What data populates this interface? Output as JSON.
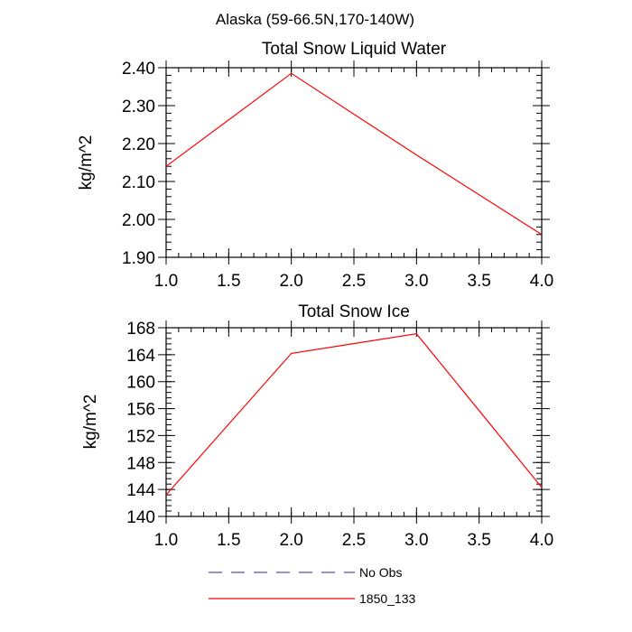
{
  "figure": {
    "suptitle": "Alaska (59-66.5N,170-140W)"
  },
  "chart_data": [
    {
      "type": "line",
      "title": "Total Snow Liquid Water",
      "xlabel": "",
      "ylabel": "kg/m^2",
      "xlim": [
        1.0,
        4.0
      ],
      "ylim": [
        1.9,
        2.4
      ],
      "x_ticks": [
        "1.0",
        "1.5",
        "2.0",
        "2.5",
        "3.0",
        "3.5",
        "4.0"
      ],
      "y_ticks": [
        "1.90",
        "2.00",
        "2.10",
        "2.20",
        "2.30",
        "2.40"
      ],
      "x_tick_values": [
        1.0,
        1.5,
        2.0,
        2.5,
        3.0,
        3.5,
        4.0
      ],
      "y_tick_values": [
        1.9,
        2.0,
        2.1,
        2.2,
        2.3,
        2.4
      ],
      "y_minor_step": 0.02,
      "x_minor_step": 0.1,
      "grid": false,
      "series": [
        {
          "name": "1850_133",
          "color": "#ff0000",
          "dash": "solid",
          "x": [
            1,
            2,
            3,
            4
          ],
          "y": [
            2.14,
            2.385,
            2.17,
            1.96
          ]
        }
      ]
    },
    {
      "type": "line",
      "title": "Total Snow Ice",
      "xlabel": "",
      "ylabel": "kg/m^2",
      "xlim": [
        1.0,
        4.0
      ],
      "ylim": [
        140,
        168
      ],
      "x_ticks": [
        "1.0",
        "1.5",
        "2.0",
        "2.5",
        "3.0",
        "3.5",
        "4.0"
      ],
      "y_ticks": [
        "140",
        "144",
        "148",
        "152",
        "156",
        "160",
        "164",
        "168"
      ],
      "x_tick_values": [
        1.0,
        1.5,
        2.0,
        2.5,
        3.0,
        3.5,
        4.0
      ],
      "y_tick_values": [
        140,
        144,
        148,
        152,
        156,
        160,
        164,
        168
      ],
      "y_minor_step": 0.8,
      "x_minor_step": 0.1,
      "grid": false,
      "series": [
        {
          "name": "1850_133",
          "color": "#ff0000",
          "dash": "solid",
          "x": [
            1,
            2,
            3,
            4
          ],
          "y": [
            143.2,
            164.2,
            167.1,
            144.3
          ]
        }
      ]
    }
  ],
  "legend": {
    "placement": "bottom",
    "items": [
      {
        "label": "No Obs",
        "color": "#5555aa",
        "dash": "dashed"
      },
      {
        "label": "1850_133",
        "color": "#ff0000",
        "dash": "solid"
      }
    ]
  }
}
